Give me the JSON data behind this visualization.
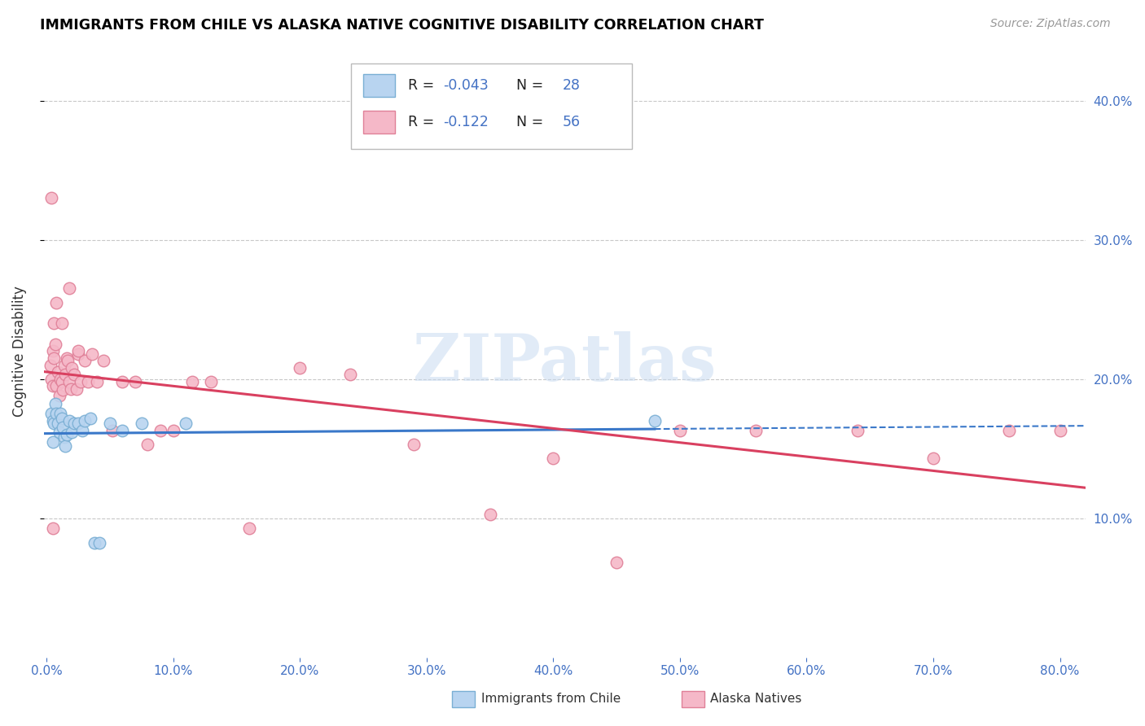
{
  "title": "IMMIGRANTS FROM CHILE VS ALASKA NATIVE COGNITIVE DISABILITY CORRELATION CHART",
  "source": "Source: ZipAtlas.com",
  "ylabel": "Cognitive Disability",
  "ylim": [
    0.0,
    0.44
  ],
  "xlim": [
    -0.002,
    0.82
  ],
  "ytick_vals": [
    0.1,
    0.2,
    0.3,
    0.4
  ],
  "ytick_labels": [
    "10.0%",
    "20.0%",
    "30.0%",
    "40.0%"
  ],
  "xtick_vals": [
    0.0,
    0.1,
    0.2,
    0.3,
    0.4,
    0.5,
    0.6,
    0.7,
    0.8
  ],
  "xtick_labels": [
    "0.0%",
    "10.0%",
    "20.0%",
    "30.0%",
    "40.0%",
    "50.0%",
    "60.0%",
    "70.0%",
    "80.0%"
  ],
  "series1_label": "Immigrants from Chile",
  "series2_label": "Alaska Natives",
  "series1_color": "#b8d4f0",
  "series2_color": "#f5b8c8",
  "series1_edge": "#7aafd4",
  "series2_edge": "#e08098",
  "trend1_color": "#3a78c9",
  "trend2_color": "#d94060",
  "legend_R1": "R = -0.043",
  "legend_N1": "N = 28",
  "legend_R2": "R =  -0.122",
  "legend_N2": "N = 56",
  "watermark": "ZIPatlas",
  "background_color": "#ffffff",
  "grid_color": "#c8c8c8",
  "axis_label_color": "#4472c4",
  "title_color": "#000000",
  "scatter1_x": [
    0.004,
    0.005,
    0.005,
    0.006,
    0.007,
    0.008,
    0.009,
    0.01,
    0.011,
    0.012,
    0.013,
    0.014,
    0.015,
    0.016,
    0.018,
    0.02,
    0.022,
    0.025,
    0.028,
    0.03,
    0.035,
    0.038,
    0.042,
    0.05,
    0.06,
    0.075,
    0.11,
    0.48
  ],
  "scatter1_y": [
    0.175,
    0.17,
    0.155,
    0.168,
    0.182,
    0.175,
    0.168,
    0.162,
    0.175,
    0.172,
    0.165,
    0.158,
    0.152,
    0.16,
    0.17,
    0.162,
    0.168,
    0.168,
    0.163,
    0.17,
    0.172,
    0.082,
    0.082,
    0.168,
    0.163,
    0.168,
    0.168,
    0.17
  ],
  "scatter2_x": [
    0.003,
    0.004,
    0.005,
    0.005,
    0.006,
    0.007,
    0.008,
    0.009,
    0.01,
    0.011,
    0.012,
    0.013,
    0.014,
    0.015,
    0.016,
    0.017,
    0.018,
    0.019,
    0.02,
    0.022,
    0.024,
    0.025,
    0.027,
    0.03,
    0.033,
    0.036,
    0.04,
    0.045,
    0.052,
    0.06,
    0.07,
    0.08,
    0.09,
    0.1,
    0.115,
    0.13,
    0.16,
    0.2,
    0.24,
    0.29,
    0.35,
    0.4,
    0.45,
    0.5,
    0.56,
    0.64,
    0.7,
    0.76,
    0.8,
    0.004,
    0.006,
    0.008,
    0.012,
    0.018,
    0.025,
    0.005
  ],
  "scatter2_y": [
    0.21,
    0.2,
    0.22,
    0.195,
    0.215,
    0.225,
    0.195,
    0.205,
    0.188,
    0.2,
    0.198,
    0.192,
    0.21,
    0.203,
    0.215,
    0.213,
    0.198,
    0.193,
    0.208,
    0.203,
    0.193,
    0.218,
    0.198,
    0.213,
    0.198,
    0.218,
    0.198,
    0.213,
    0.163,
    0.198,
    0.198,
    0.153,
    0.163,
    0.163,
    0.198,
    0.198,
    0.093,
    0.208,
    0.203,
    0.153,
    0.103,
    0.143,
    0.068,
    0.163,
    0.163,
    0.163,
    0.143,
    0.163,
    0.163,
    0.33,
    0.24,
    0.255,
    0.24,
    0.265,
    0.22,
    0.093
  ]
}
